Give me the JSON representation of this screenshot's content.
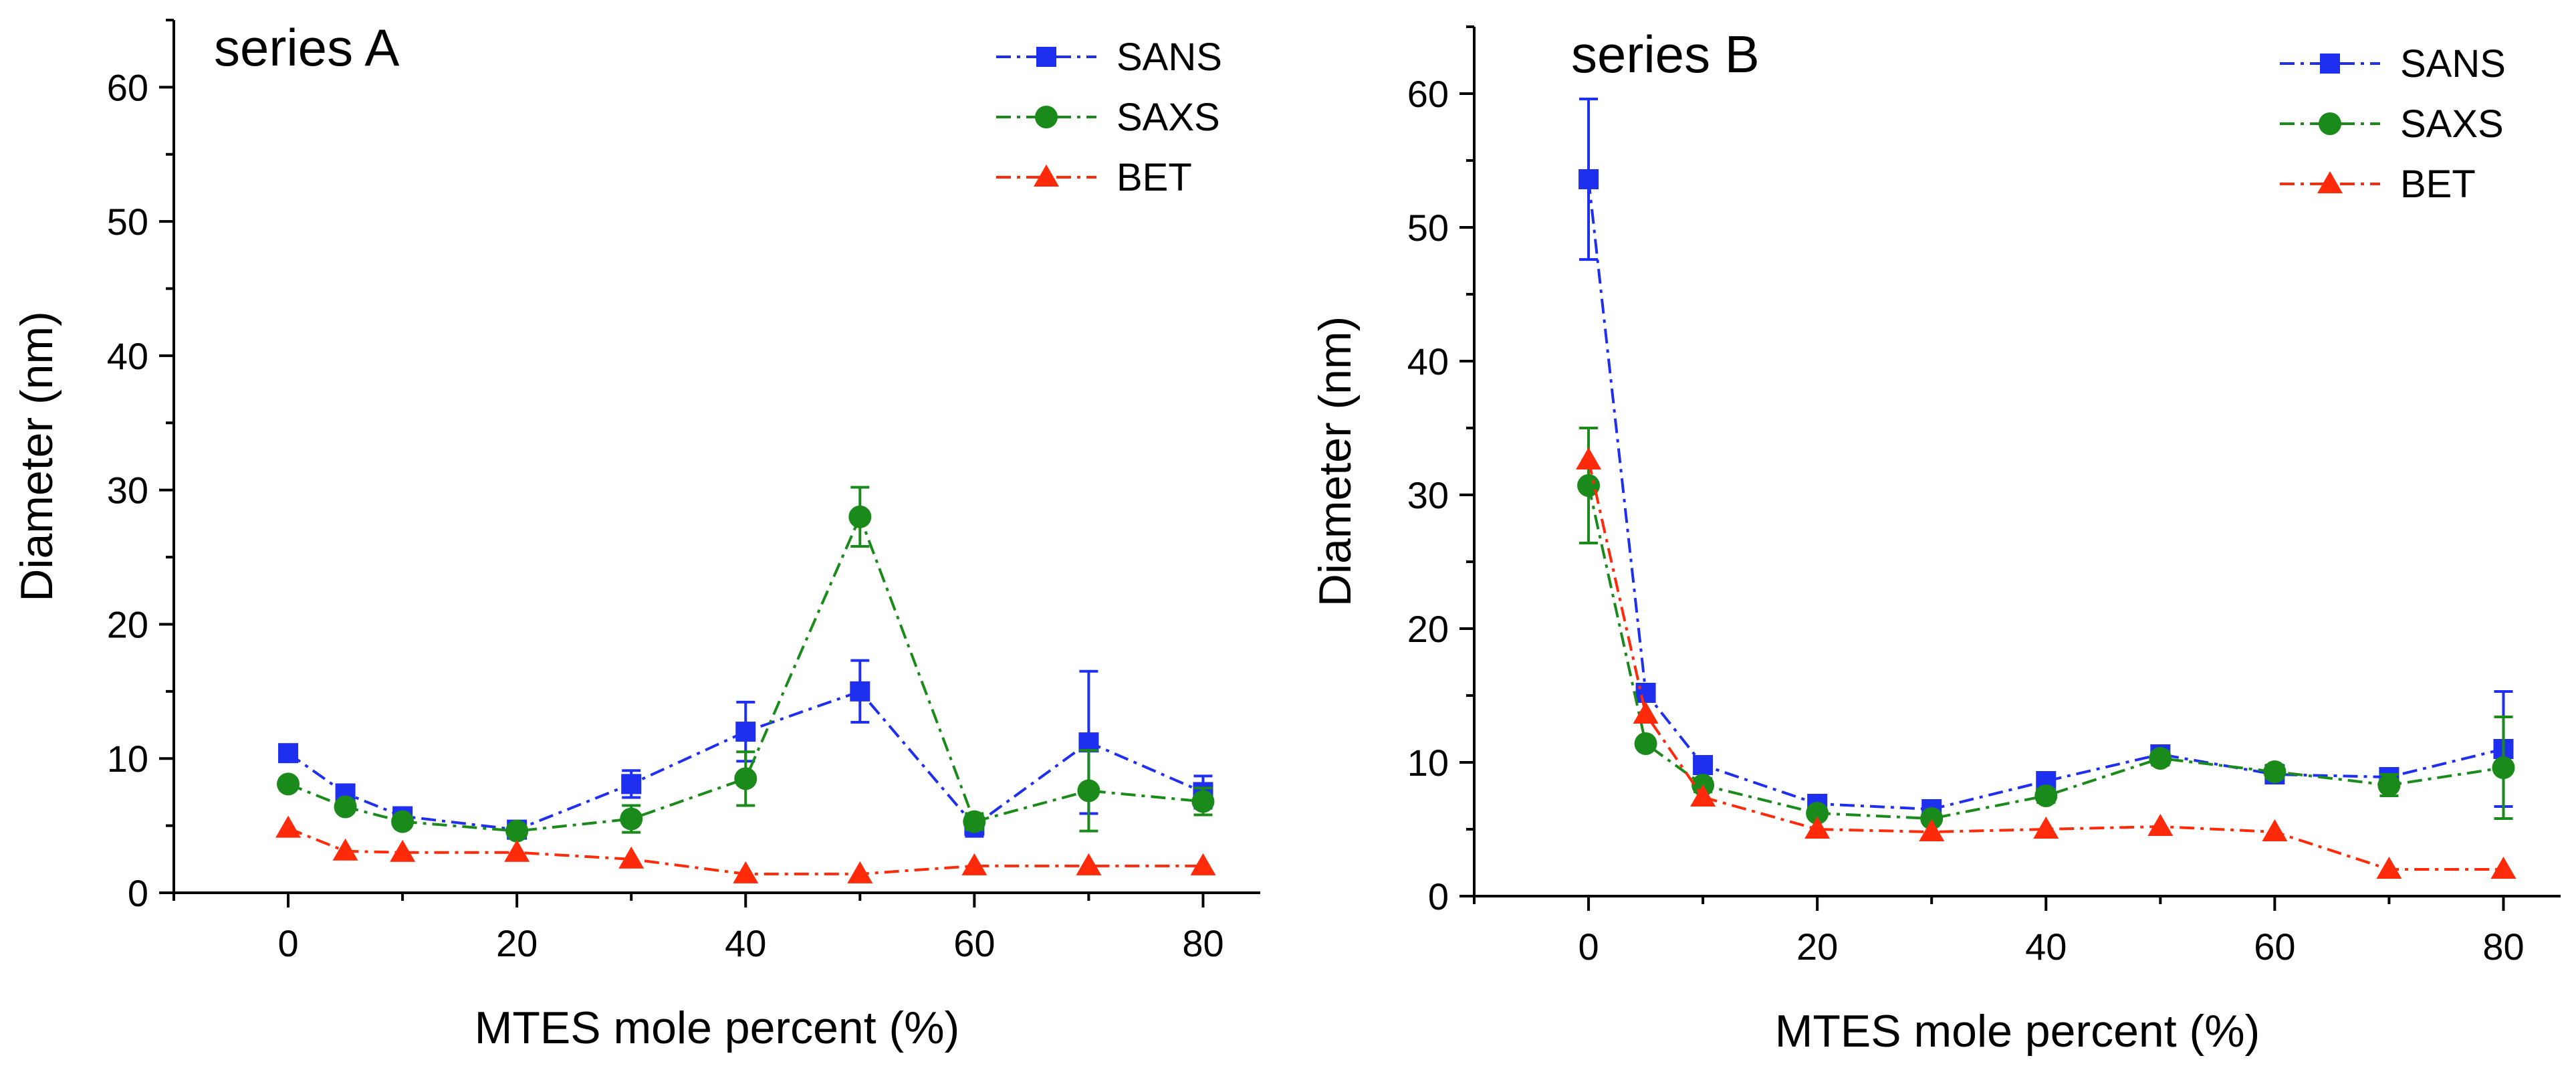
{
  "chart_data": [
    {
      "type": "line",
      "title": "series A",
      "xlabel": "MTES mole percent (%)",
      "ylabel": "Diameter (nm)",
      "xlim": [
        -10,
        85
      ],
      "ylim": [
        0,
        65
      ],
      "xticks": [
        0,
        20,
        40,
        60,
        80
      ],
      "yticks": [
        0,
        10,
        20,
        30,
        40,
        50,
        60
      ],
      "legend_position": "top-right",
      "series": [
        {
          "name": "SANS",
          "color": "#1f2ff0",
          "marker": "square",
          "x": [
            0,
            5,
            10,
            20,
            30,
            40,
            50,
            60,
            70,
            80
          ],
          "y": [
            10.4,
            7.4,
            5.7,
            4.7,
            8.1,
            12.0,
            15.0,
            5.0,
            11.2,
            7.5
          ],
          "err": [
            0.5,
            0.5,
            0.5,
            0.3,
            1.0,
            2.2,
            2.3,
            0.8,
            5.3,
            1.2
          ]
        },
        {
          "name": "SAXS",
          "color": "#1a8a1a",
          "marker": "circle",
          "x": [
            0,
            5,
            10,
            20,
            30,
            40,
            50,
            60,
            70,
            80
          ],
          "y": [
            8.1,
            6.4,
            5.3,
            4.6,
            5.5,
            8.5,
            28.0,
            5.3,
            7.6,
            6.8
          ],
          "err": [
            0.4,
            0.4,
            0.4,
            0.3,
            1.0,
            2.0,
            2.2,
            0.6,
            3.0,
            1.0
          ]
        },
        {
          "name": "BET",
          "color": "#ff2a0a",
          "marker": "triangle",
          "x": [
            0,
            5,
            10,
            20,
            30,
            40,
            50,
            60,
            70,
            80
          ],
          "y": [
            4.8,
            3.1,
            3.0,
            3.0,
            2.5,
            1.4,
            1.4,
            2.0,
            2.0,
            2.0
          ],
          "err": []
        }
      ]
    },
    {
      "type": "line",
      "title": "series B",
      "xlabel": "MTES mole percent (%)",
      "ylabel": "Diameter (nm)",
      "xlim": [
        -10,
        85
      ],
      "ylim": [
        0,
        65
      ],
      "xticks": [
        0,
        20,
        40,
        60,
        80
      ],
      "yticks": [
        0,
        10,
        20,
        30,
        40,
        50,
        60
      ],
      "legend_position": "top-right",
      "series": [
        {
          "name": "SANS",
          "color": "#1f2ff0",
          "marker": "square",
          "x": [
            0,
            5,
            10,
            20,
            30,
            40,
            50,
            60,
            70,
            80
          ],
          "y": [
            53.6,
            15.2,
            9.8,
            6.9,
            6.5,
            8.6,
            10.6,
            9.1,
            8.9,
            11.0
          ],
          "err": [
            6.0,
            0.5,
            0.5,
            0.4,
            0.4,
            0.5,
            0.5,
            0.4,
            0.5,
            4.3
          ]
        },
        {
          "name": "SAXS",
          "color": "#1a8a1a",
          "marker": "circle",
          "x": [
            0,
            5,
            10,
            20,
            30,
            40,
            50,
            60,
            70,
            80
          ],
          "y": [
            30.7,
            11.4,
            8.3,
            6.2,
            5.8,
            7.5,
            10.3,
            9.3,
            8.3,
            9.6
          ],
          "err": [
            4.3,
            0.4,
            0.5,
            0.4,
            0.4,
            0.5,
            0.5,
            0.5,
            0.8,
            3.8
          ]
        },
        {
          "name": "BET",
          "color": "#ff2a0a",
          "marker": "triangle",
          "x": [
            0,
            5,
            10,
            20,
            30,
            40,
            50,
            60,
            70,
            80
          ],
          "y": [
            32.6,
            13.6,
            7.4,
            5.0,
            4.8,
            5.0,
            5.2,
            4.8,
            2.0,
            2.0
          ],
          "err": []
        }
      ]
    }
  ]
}
